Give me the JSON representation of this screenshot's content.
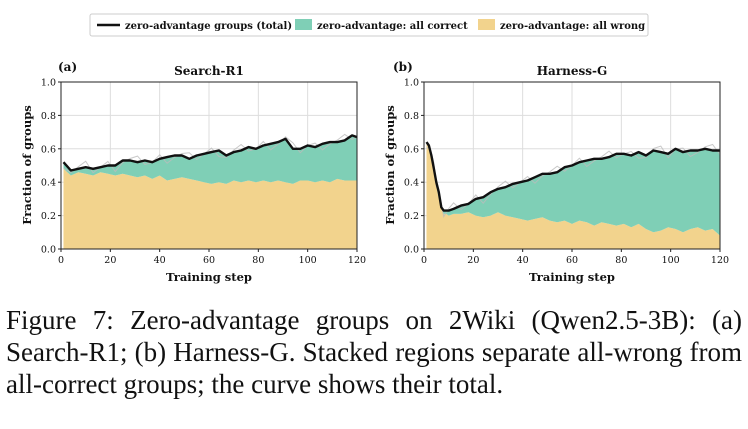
{
  "legend": {
    "items": [
      {
        "label": "zero-advantage groups (total)",
        "kind": "line",
        "color": "#111111"
      },
      {
        "label": "zero-advantage: all correct",
        "kind": "patch",
        "color": "#7fcfb6"
      },
      {
        "label": "zero-advantage: all wrong",
        "kind": "patch",
        "color": "#f2d38d"
      }
    ]
  },
  "colors": {
    "all_correct": "#7fcfb6",
    "all_wrong": "#f2d38d",
    "total_line": "#111111",
    "raw_line": "#bbbbbb",
    "grid": "#dddddd"
  },
  "chart_data": [
    {
      "type": "area",
      "panel_letter": "(a)",
      "title": "Search-R1",
      "xlabel": "Training step",
      "ylabel": "Fraction of groups",
      "xlim": [
        0,
        120
      ],
      "ylim": [
        0,
        1.0
      ],
      "xticks": [
        0,
        20,
        40,
        60,
        80,
        100,
        120
      ],
      "yticks": [
        0.0,
        0.2,
        0.4,
        0.6,
        0.8,
        1.0
      ],
      "grid": true,
      "legend_position": "top-center",
      "x": [
        1,
        4,
        7,
        10,
        13,
        16,
        19,
        22,
        25,
        28,
        31,
        34,
        37,
        40,
        43,
        46,
        49,
        52,
        55,
        58,
        61,
        64,
        67,
        70,
        73,
        76,
        79,
        82,
        85,
        88,
        91,
        94,
        97,
        100,
        103,
        106,
        109,
        112,
        115,
        118,
        120
      ],
      "series": [
        {
          "name": "zero-advantage: all wrong",
          "stack": "base",
          "values": [
            0.48,
            0.44,
            0.46,
            0.45,
            0.44,
            0.46,
            0.45,
            0.44,
            0.45,
            0.44,
            0.43,
            0.44,
            0.42,
            0.44,
            0.41,
            0.42,
            0.43,
            0.42,
            0.41,
            0.4,
            0.39,
            0.4,
            0.39,
            0.41,
            0.4,
            0.41,
            0.4,
            0.41,
            0.4,
            0.41,
            0.4,
            0.39,
            0.41,
            0.41,
            0.4,
            0.41,
            0.4,
            0.42,
            0.41,
            0.41,
            0.41
          ]
        },
        {
          "name": "zero-advantage: all correct",
          "stack": "top",
          "values": [
            0.04,
            0.03,
            0.02,
            0.04,
            0.04,
            0.03,
            0.05,
            0.06,
            0.08,
            0.09,
            0.09,
            0.09,
            0.1,
            0.1,
            0.14,
            0.14,
            0.13,
            0.12,
            0.15,
            0.17,
            0.19,
            0.19,
            0.17,
            0.17,
            0.19,
            0.2,
            0.2,
            0.21,
            0.23,
            0.23,
            0.26,
            0.21,
            0.19,
            0.21,
            0.21,
            0.22,
            0.24,
            0.22,
            0.24,
            0.27,
            0.26
          ]
        },
        {
          "name": "zero-advantage groups (total)",
          "values": [
            0.52,
            0.47,
            0.48,
            0.49,
            0.48,
            0.49,
            0.5,
            0.5,
            0.53,
            0.53,
            0.52,
            0.53,
            0.52,
            0.54,
            0.55,
            0.56,
            0.56,
            0.54,
            0.56,
            0.57,
            0.58,
            0.59,
            0.56,
            0.58,
            0.59,
            0.61,
            0.6,
            0.62,
            0.63,
            0.64,
            0.66,
            0.6,
            0.6,
            0.62,
            0.61,
            0.63,
            0.64,
            0.64,
            0.65,
            0.68,
            0.67
          ]
        }
      ]
    },
    {
      "type": "area",
      "panel_letter": "(b)",
      "title": "Harness-G",
      "xlabel": "Training step",
      "ylabel": "Fraction of groups",
      "xlim": [
        0,
        120
      ],
      "ylim": [
        0,
        1.0
      ],
      "xticks": [
        0,
        20,
        40,
        60,
        80,
        100,
        120
      ],
      "yticks": [
        0.0,
        0.2,
        0.4,
        0.6,
        0.8,
        1.0
      ],
      "grid": true,
      "x": [
        1,
        2,
        3,
        4,
        5,
        6,
        7,
        8,
        9,
        10,
        12,
        15,
        18,
        21,
        24,
        27,
        30,
        33,
        36,
        39,
        42,
        45,
        48,
        51,
        54,
        57,
        60,
        63,
        66,
        69,
        72,
        75,
        78,
        81,
        84,
        87,
        90,
        93,
        96,
        99,
        102,
        105,
        108,
        111,
        114,
        117,
        120
      ],
      "series": [
        {
          "name": "zero-advantage: all wrong",
          "stack": "base",
          "values": [
            0.64,
            0.62,
            0.55,
            0.46,
            0.38,
            0.3,
            0.24,
            0.21,
            0.21,
            0.2,
            0.21,
            0.21,
            0.22,
            0.2,
            0.19,
            0.2,
            0.22,
            0.2,
            0.19,
            0.18,
            0.17,
            0.18,
            0.19,
            0.17,
            0.16,
            0.17,
            0.15,
            0.17,
            0.16,
            0.14,
            0.16,
            0.15,
            0.14,
            0.15,
            0.13,
            0.15,
            0.12,
            0.1,
            0.11,
            0.13,
            0.12,
            0.1,
            0.12,
            0.13,
            0.11,
            0.12,
            0.08
          ]
        },
        {
          "name": "zero-advantage: all correct",
          "stack": "top",
          "values": [
            0.0,
            0.0,
            0.01,
            0.02,
            0.02,
            0.04,
            0.01,
            0.02,
            0.02,
            0.03,
            0.03,
            0.05,
            0.05,
            0.1,
            0.12,
            0.14,
            0.14,
            0.17,
            0.2,
            0.22,
            0.24,
            0.25,
            0.26,
            0.28,
            0.3,
            0.32,
            0.35,
            0.35,
            0.37,
            0.4,
            0.38,
            0.4,
            0.43,
            0.42,
            0.43,
            0.43,
            0.44,
            0.49,
            0.47,
            0.44,
            0.48,
            0.48,
            0.47,
            0.46,
            0.49,
            0.47,
            0.51
          ]
        },
        {
          "name": "zero-advantage groups (total)",
          "values": [
            0.64,
            0.62,
            0.56,
            0.48,
            0.4,
            0.34,
            0.25,
            0.23,
            0.23,
            0.23,
            0.24,
            0.26,
            0.27,
            0.3,
            0.31,
            0.34,
            0.36,
            0.37,
            0.39,
            0.4,
            0.41,
            0.43,
            0.45,
            0.45,
            0.46,
            0.49,
            0.5,
            0.52,
            0.53,
            0.54,
            0.54,
            0.55,
            0.57,
            0.57,
            0.56,
            0.58,
            0.56,
            0.59,
            0.58,
            0.57,
            0.6,
            0.58,
            0.59,
            0.59,
            0.6,
            0.59,
            0.59
          ]
        }
      ]
    }
  ],
  "caption": {
    "text": "Figure 7: Zero-advantage groups on 2Wiki (Qwen2.5-3B): (a) Search-R1; (b) Harness-G. Stacked regions separate all-wrong from all-correct groups; the curve shows their total."
  }
}
